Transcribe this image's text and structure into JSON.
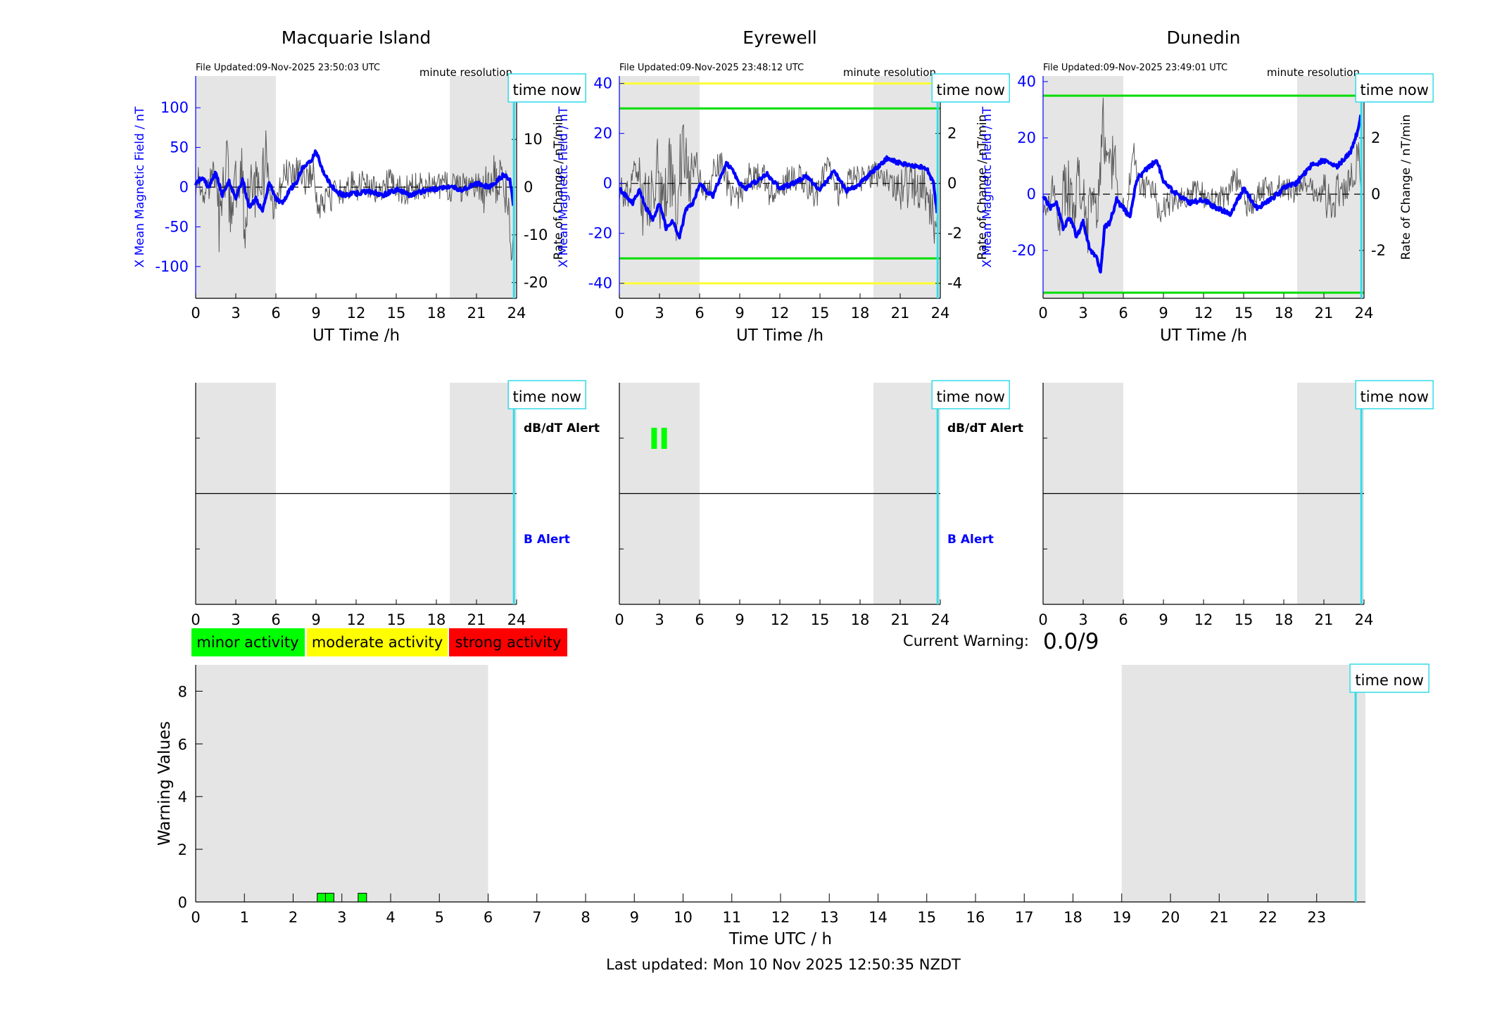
{
  "footer": {
    "last_updated": "Last updated: Mon 10 Nov 2025 12:50:35 NZDT"
  },
  "current_warning": {
    "label": "Current Warning:",
    "value": "0.0/9"
  },
  "activity_legend": [
    {
      "label": "minor activity",
      "color": "#00ff00"
    },
    {
      "label": "moderate activity",
      "color": "#ffff00"
    },
    {
      "label": "strong activity",
      "color": "#ff0000"
    }
  ],
  "time_now_label": "time now",
  "colors": {
    "field_line": "#0000ff",
    "rate_line": "#5a5a5a",
    "night_shade": "#e5e5e5",
    "time_now_line": "#33dbe8",
    "moderate_threshold": "#00dd00",
    "strong_threshold": "#ffff33"
  },
  "chart_data": [
    {
      "type": "line",
      "station": "Macquarie Island",
      "title": "Macquarie Island",
      "file_updated": "File Updated:09-Nov-2025 23:50:03 UTC",
      "resolution": "minute resolution",
      "xlabel": "UT Time /h",
      "ylabel_left": "X Mean Magnetic Field / nT",
      "ylabel_right": "Rate of Change / nT/min",
      "xlim": [
        0,
        24
      ],
      "xticks": [
        0,
        3,
        6,
        9,
        12,
        15,
        18,
        21,
        24
      ],
      "ylim_left": [
        -140,
        140
      ],
      "yticks_left": [
        -100,
        -50,
        0,
        50,
        100
      ],
      "ylim_right": [
        -23.3,
        23.3
      ],
      "yticks_right": [
        -20,
        -10,
        0,
        10,
        20
      ],
      "night_shading": [
        [
          0,
          6
        ],
        [
          19,
          24
        ]
      ],
      "time_now": 23.8,
      "thresholds": [],
      "rate_amp": 7,
      "series": [
        {
          "name": "X Mean Magnetic Field",
          "axis": "left",
          "x": [
            0,
            0.5,
            1,
            1.5,
            2,
            2.5,
            3,
            3.5,
            4,
            4.5,
            5,
            5.5,
            6,
            6.5,
            7,
            7.5,
            8,
            8.5,
            9,
            9.5,
            10,
            10.5,
            11,
            12,
            13,
            14,
            15,
            16,
            17,
            18,
            19,
            20,
            21,
            22,
            23,
            23.5,
            23.8
          ],
          "y": [
            5,
            12,
            0,
            18,
            -10,
            8,
            -15,
            10,
            -25,
            -15,
            -30,
            5,
            -15,
            -20,
            -5,
            5,
            25,
            30,
            45,
            20,
            5,
            -5,
            -10,
            -8,
            -5,
            -10,
            -3,
            -10,
            -5,
            -2,
            0,
            -3,
            5,
            0,
            15,
            10,
            -30
          ]
        }
      ]
    },
    {
      "type": "line",
      "station": "Eyrewell",
      "title": "Eyrewell",
      "file_updated": "File Updated:09-Nov-2025 23:48:12 UTC",
      "resolution": "minute resolution",
      "xlabel": "UT Time /h",
      "ylabel_left": "X Mean Magnetic Field / nT",
      "ylabel_right": "Rate of Change / nT/min",
      "xlim": [
        0,
        24
      ],
      "xticks": [
        0,
        3,
        6,
        9,
        12,
        15,
        18,
        21,
        24
      ],
      "ylim_left": [
        -46,
        43
      ],
      "yticks_left": [
        -40,
        -20,
        0,
        20,
        40
      ],
      "ylim_right": [
        -4.6,
        4.3
      ],
      "yticks_right": [
        -4,
        -2,
        0,
        2,
        4
      ],
      "night_shading": [
        [
          0,
          6
        ],
        [
          19,
          24
        ]
      ],
      "time_now": 23.8,
      "thresholds": [
        {
          "value": 40,
          "color": "#ffff33"
        },
        {
          "value": 30,
          "color": "#00dd00"
        },
        {
          "value": -30,
          "color": "#00dd00"
        },
        {
          "value": -40,
          "color": "#ffff33"
        }
      ],
      "rate_amp": 1.3,
      "series": [
        {
          "name": "X Mean Magnetic Field",
          "axis": "left",
          "x": [
            0,
            0.5,
            1,
            1.5,
            2,
            2.5,
            3,
            3.5,
            4,
            4.5,
            5,
            5.5,
            6,
            6.5,
            7,
            7.5,
            8,
            8.5,
            9,
            9.5,
            10,
            11,
            12,
            13,
            14,
            15,
            16,
            17,
            18,
            19,
            20,
            21,
            22,
            23,
            23.5,
            23.8
          ],
          "y": [
            -2,
            -5,
            -8,
            -3,
            -10,
            -14,
            -8,
            -18,
            -15,
            -22,
            -10,
            -8,
            0,
            -3,
            -5,
            2,
            8,
            5,
            0,
            -2,
            0,
            4,
            -2,
            0,
            3,
            -3,
            5,
            -3,
            0,
            5,
            10,
            8,
            7,
            6,
            0,
            -14
          ]
        }
      ]
    },
    {
      "type": "line",
      "station": "Dunedin",
      "title": "Dunedin",
      "file_updated": "File Updated:09-Nov-2025 23:49:01 UTC",
      "resolution": "minute resolution",
      "xlabel": "UT Time /h",
      "ylabel_left": "X Mean Magnetic Field / nT",
      "ylabel_right": "Rate of Change / nT/min",
      "xlim": [
        0,
        24
      ],
      "xticks": [
        0,
        3,
        6,
        9,
        12,
        15,
        18,
        21,
        24
      ],
      "ylim_left": [
        -37,
        42
      ],
      "yticks_left": [
        -20,
        0,
        20,
        40
      ],
      "ylim_right": [
        -3.7,
        4.2
      ],
      "yticks_right": [
        -2,
        0,
        2,
        4
      ],
      "night_shading": [
        [
          0,
          6
        ],
        [
          19,
          24
        ]
      ],
      "time_now": 23.8,
      "thresholds": [
        {
          "value": 35,
          "color": "#00dd00"
        },
        {
          "value": -35,
          "color": "#00dd00"
        }
      ],
      "rate_amp": 1.0,
      "series": [
        {
          "name": "X Mean Magnetic Field",
          "axis": "left",
          "x": [
            0,
            0.5,
            1,
            1.5,
            2,
            2.5,
            3,
            3.5,
            4,
            4.3,
            4.6,
            5,
            5.5,
            6,
            6.5,
            7,
            7.5,
            8,
            8.5,
            9,
            9.5,
            10,
            11,
            12,
            13,
            14,
            15,
            16,
            17,
            18,
            19,
            20,
            21,
            22,
            23,
            23.5,
            23.8
          ],
          "y": [
            0,
            -5,
            -3,
            -12,
            -8,
            -15,
            -10,
            -20,
            -22,
            -28,
            -12,
            -10,
            -2,
            -5,
            -8,
            5,
            8,
            10,
            12,
            5,
            2,
            0,
            -3,
            -2,
            -5,
            -7,
            2,
            -5,
            -2,
            2,
            4,
            10,
            12,
            10,
            15,
            22,
            30
          ]
        }
      ]
    },
    {
      "type": "line",
      "station": "Macquarie Island",
      "labels": [
        "dB/dT Alert",
        "B Alert"
      ],
      "xlim": [
        0,
        24
      ],
      "xticks": [
        0,
        3,
        6,
        9,
        12,
        15,
        18,
        21,
        24
      ],
      "night_shading": [
        [
          0,
          6
        ],
        [
          19,
          24
        ]
      ],
      "time_now": 23.8,
      "alerts": []
    },
    {
      "type": "line",
      "station": "Eyrewell",
      "labels": [
        "dB/dT Alert",
        "B Alert"
      ],
      "xlim": [
        0,
        24
      ],
      "xticks": [
        0,
        3,
        6,
        9,
        12,
        15,
        18,
        21,
        24
      ],
      "night_shading": [
        [
          0,
          6
        ],
        [
          19,
          24
        ]
      ],
      "time_now": 23.8,
      "alerts": [
        {
          "x": 2.6,
          "level": "minor"
        },
        {
          "x": 3.35,
          "level": "minor"
        }
      ]
    },
    {
      "type": "line",
      "station": "Dunedin",
      "labels": [],
      "xlim": [
        0,
        24
      ],
      "xticks": [
        0,
        3,
        6,
        9,
        12,
        15,
        18,
        21,
        24
      ],
      "night_shading": [
        [
          0,
          6
        ],
        [
          19,
          24
        ]
      ],
      "time_now": 23.8,
      "alerts": []
    },
    {
      "type": "bar",
      "title": "",
      "xlabel": "Time UTC / h",
      "ylabel": "Warning Values",
      "xlim": [
        0,
        24
      ],
      "xticks": [
        0,
        1,
        2,
        3,
        4,
        5,
        6,
        7,
        8,
        9,
        10,
        11,
        12,
        13,
        14,
        15,
        16,
        17,
        18,
        19,
        20,
        21,
        22,
        23
      ],
      "ylim": [
        0,
        9
      ],
      "yticks": [
        0,
        2,
        4,
        6,
        8
      ],
      "night_shading": [
        [
          0,
          6
        ],
        [
          19,
          24
        ]
      ],
      "time_now": 23.8,
      "bars": [
        {
          "x": 2.58,
          "value": 0.33,
          "color": "#00ff00"
        },
        {
          "x": 2.75,
          "value": 0.33,
          "color": "#00ff00"
        },
        {
          "x": 3.42,
          "value": 0.33,
          "color": "#00ff00"
        }
      ]
    }
  ]
}
